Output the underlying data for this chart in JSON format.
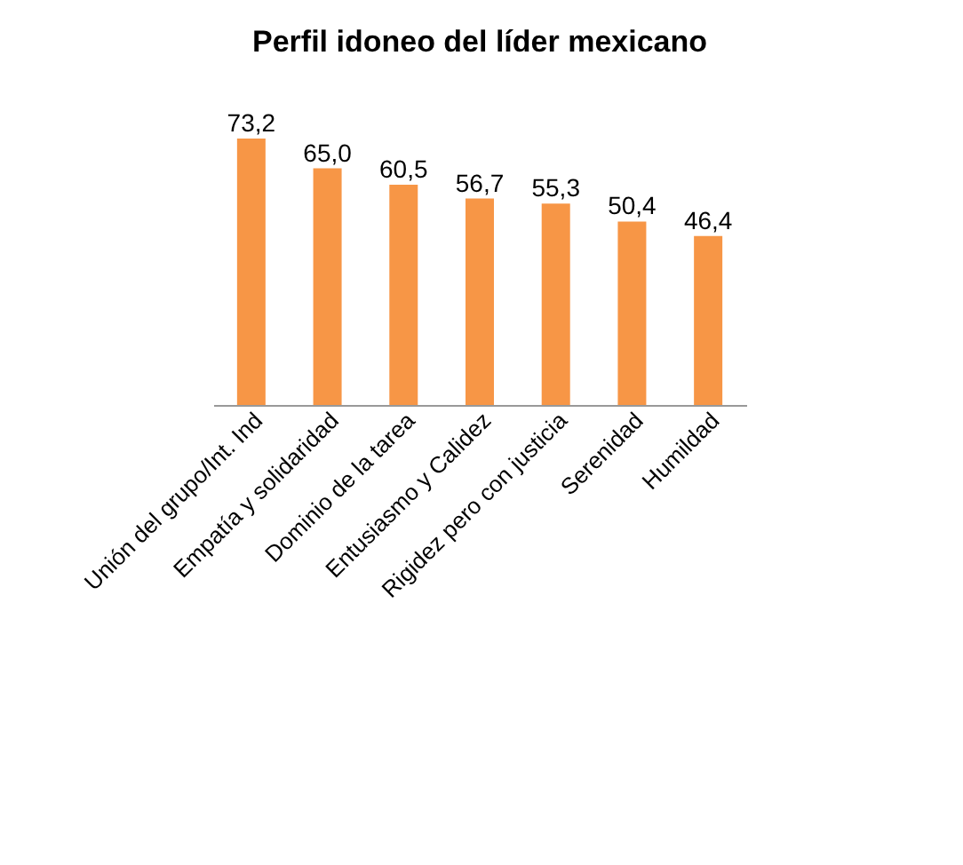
{
  "chart_data": {
    "type": "bar",
    "title": "Perfil idoneo del líder mexicano",
    "categories": [
      "Unión del grupo/Int. Ind",
      "Empatía y solidaridad",
      "Dominio de la tarea",
      "Entusiasmo y Calidez",
      "Rigidez pero con justicia",
      "Serenidad",
      "Humildad"
    ],
    "values": [
      73.2,
      65.0,
      60.5,
      56.7,
      55.3,
      50.4,
      46.4
    ],
    "value_labels": [
      "73,2",
      "65,0",
      "60,5",
      "56,7",
      "55,3",
      "50,4",
      "46,4"
    ],
    "color": "#f79646"
  }
}
